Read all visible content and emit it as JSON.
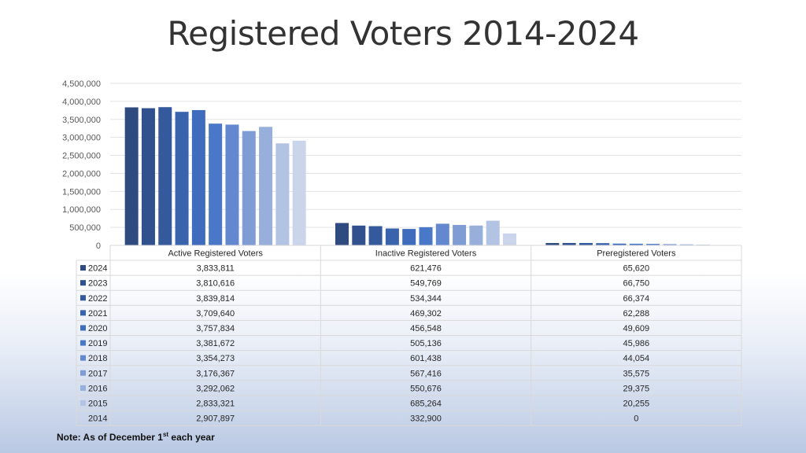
{
  "note": {
    "prefix": "Note: As of December 1",
    "superscript": "st",
    "suffix": " each year"
  },
  "chart_data": {
    "type": "bar",
    "title": "Registered Voters 2014-2024",
    "categories": [
      "Active Registered Voters",
      "Inactive Registered Voters",
      "Preregistered Voters"
    ],
    "ylim": [
      0,
      4500000
    ],
    "yticks": [
      0,
      500000,
      1000000,
      1500000,
      2000000,
      2500000,
      3000000,
      3500000,
      4000000,
      4500000
    ],
    "ytick_labels": [
      "0",
      "500,000",
      "1,000,000",
      "1,500,000",
      "2,000,000",
      "2,500,000",
      "3,000,000",
      "3,500,000",
      "4,000,000",
      "4,500,000"
    ],
    "grid": true,
    "legend": "data-table-below",
    "series": [
      {
        "name": "2024",
        "color": "#2f4a7f",
        "values": [
          3833811,
          621476,
          65620
        ],
        "labels": [
          "3,833,811",
          "621,476",
          "65,620"
        ]
      },
      {
        "name": "2023",
        "color": "#30518e",
        "values": [
          3810616,
          549769,
          66750
        ],
        "labels": [
          "3,810,616",
          "549,769",
          "66,750"
        ]
      },
      {
        "name": "2022",
        "color": "#34599d",
        "values": [
          3839814,
          534344,
          66374
        ],
        "labels": [
          "3,839,814",
          "534,344",
          "66,374"
        ]
      },
      {
        "name": "2021",
        "color": "#3a63ad",
        "values": [
          3709640,
          469302,
          62288
        ],
        "labels": [
          "3,709,640",
          "469,302",
          "62,288"
        ]
      },
      {
        "name": "2020",
        "color": "#3f6cbd",
        "values": [
          3757834,
          456548,
          49609
        ],
        "labels": [
          "3,757,834",
          "456,548",
          "49,609"
        ]
      },
      {
        "name": "2019",
        "color": "#4a78c9",
        "values": [
          3381672,
          505136,
          45986
        ],
        "labels": [
          "3,381,672",
          "505,136",
          "45,986"
        ]
      },
      {
        "name": "2018",
        "color": "#6388cf",
        "values": [
          3354273,
          601438,
          44054
        ],
        "labels": [
          "3,354,273",
          "601,438",
          "44,054"
        ]
      },
      {
        "name": "2017",
        "color": "#7f9cd5",
        "values": [
          3176367,
          567416,
          35575
        ],
        "labels": [
          "3,176,367",
          "567,416",
          "35,575"
        ]
      },
      {
        "name": "2016",
        "color": "#98afdb",
        "values": [
          3292062,
          550676,
          29375
        ],
        "labels": [
          "3,292,062",
          "550,676",
          "29,375"
        ]
      },
      {
        "name": "2015",
        "color": "#b3c3e4",
        "values": [
          2833321,
          685264,
          20255
        ],
        "labels": [
          "2,833,321",
          "685,264",
          "20,255"
        ]
      },
      {
        "name": "2014",
        "color": "#cad5ec",
        "values": [
          2907897,
          332900,
          0
        ],
        "labels": [
          "2,907,897",
          "332,900",
          "0"
        ]
      }
    ]
  }
}
